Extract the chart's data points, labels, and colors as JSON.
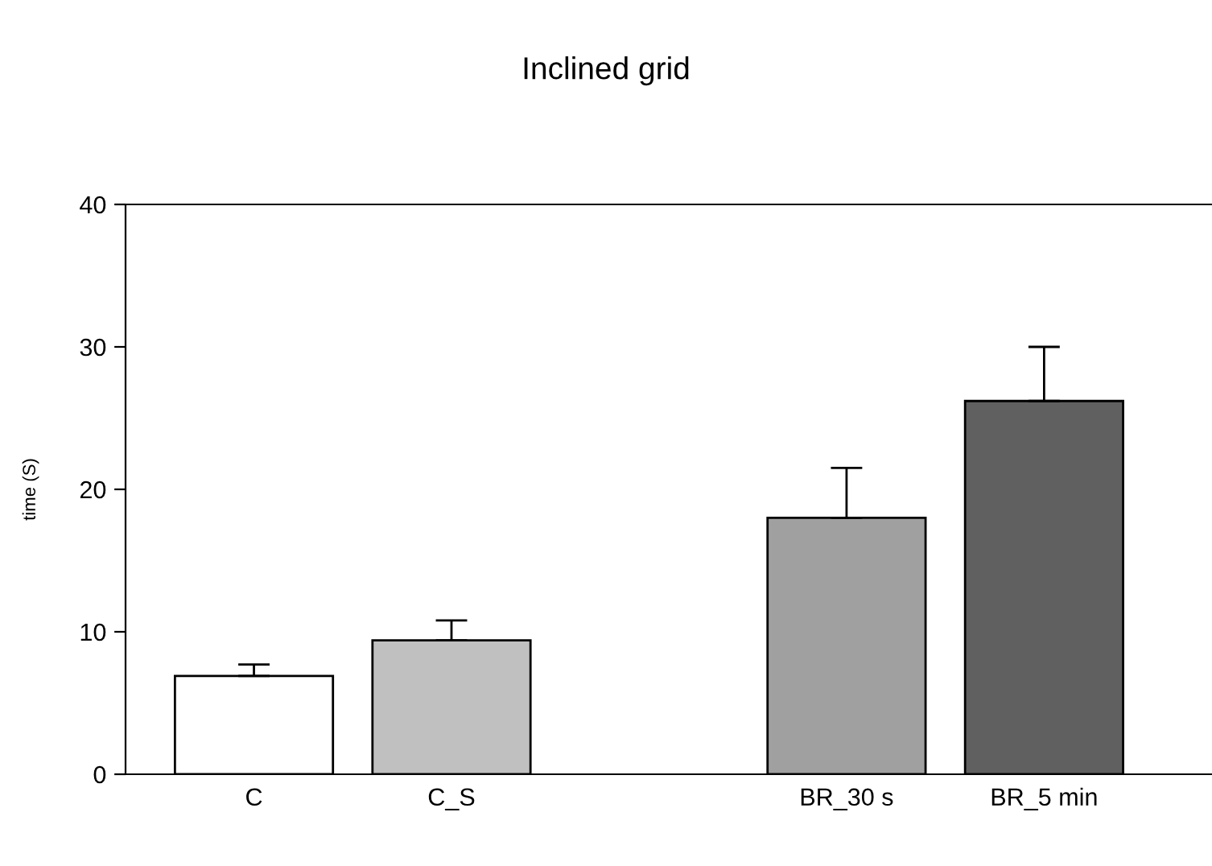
{
  "chart_data": {
    "type": "bar",
    "title": "Inclined grid",
    "ylabel": "time (S)",
    "categories": [
      "C",
      "C_S",
      null,
      "BR_30 s",
      "BR_5 min"
    ],
    "values": [
      6.9,
      9.4,
      null,
      18.0,
      26.2
    ],
    "errors": [
      [
        6.9,
        7.7
      ],
      [
        9.4,
        10.8
      ],
      null,
      [
        18.0,
        21.5
      ],
      [
        26.2,
        30.0
      ]
    ],
    "colors": [
      "#ffffff",
      "#c0c0c0",
      "#ffffff",
      "#a0a0a0",
      "#606060"
    ],
    "ylim": [
      0,
      40
    ],
    "yticks": [
      0,
      10,
      20,
      30,
      40
    ],
    "grid": false,
    "legend": false
  }
}
